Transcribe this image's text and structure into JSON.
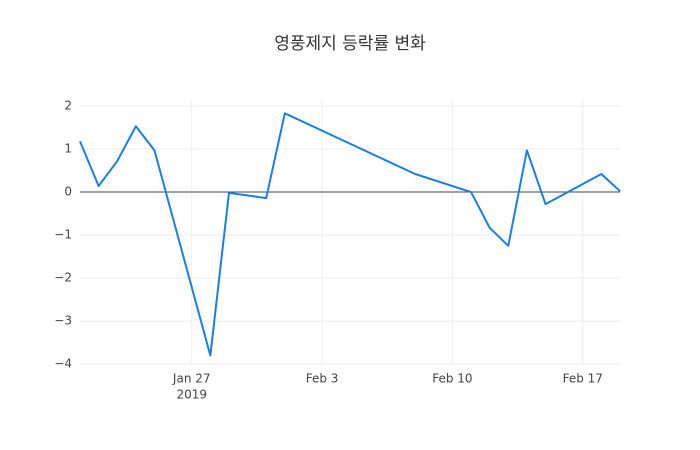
{
  "chart_data": {
    "type": "line",
    "title": "영풍제지 등락률 변화",
    "x": [
      "2019-01-21",
      "2019-01-22",
      "2019-01-23",
      "2019-01-24",
      "2019-01-25",
      "2019-01-28",
      "2019-01-29",
      "2019-01-31",
      "2019-02-01",
      "2019-02-08",
      "2019-02-11",
      "2019-02-12",
      "2019-02-13",
      "2019-02-14",
      "2019-02-15",
      "2019-02-18",
      "2019-02-19"
    ],
    "series": [
      {
        "name": "등락률",
        "color": "#1a7fe0",
        "values": [
          1.18,
          0.14,
          0.72,
          1.53,
          0.97,
          -3.8,
          -0.02,
          -0.14,
          1.83,
          0.42,
          0.0,
          -0.83,
          -1.25,
          0.97,
          -0.28,
          0.42,
          0.02
        ]
      }
    ],
    "xlim": [
      "2019-01-21",
      "2019-02-19"
    ],
    "xticks": [
      {
        "value": "2019-01-27",
        "label": "Jan 27"
      },
      {
        "value": "2019-02-03",
        "label": "Feb 3"
      },
      {
        "value": "2019-02-10",
        "label": "Feb 10"
      },
      {
        "value": "2019-02-17",
        "label": "Feb 17"
      }
    ],
    "x_year_label": "2019",
    "ylim": [
      -4.02,
      2.14
    ],
    "yticks": [
      {
        "value": -4,
        "label": "−4"
      },
      {
        "value": -3,
        "label": "−3"
      },
      {
        "value": -2,
        "label": "−2"
      },
      {
        "value": -1,
        "label": "−1"
      },
      0,
      1,
      2
    ],
    "grid": true,
    "zeroline": true
  }
}
